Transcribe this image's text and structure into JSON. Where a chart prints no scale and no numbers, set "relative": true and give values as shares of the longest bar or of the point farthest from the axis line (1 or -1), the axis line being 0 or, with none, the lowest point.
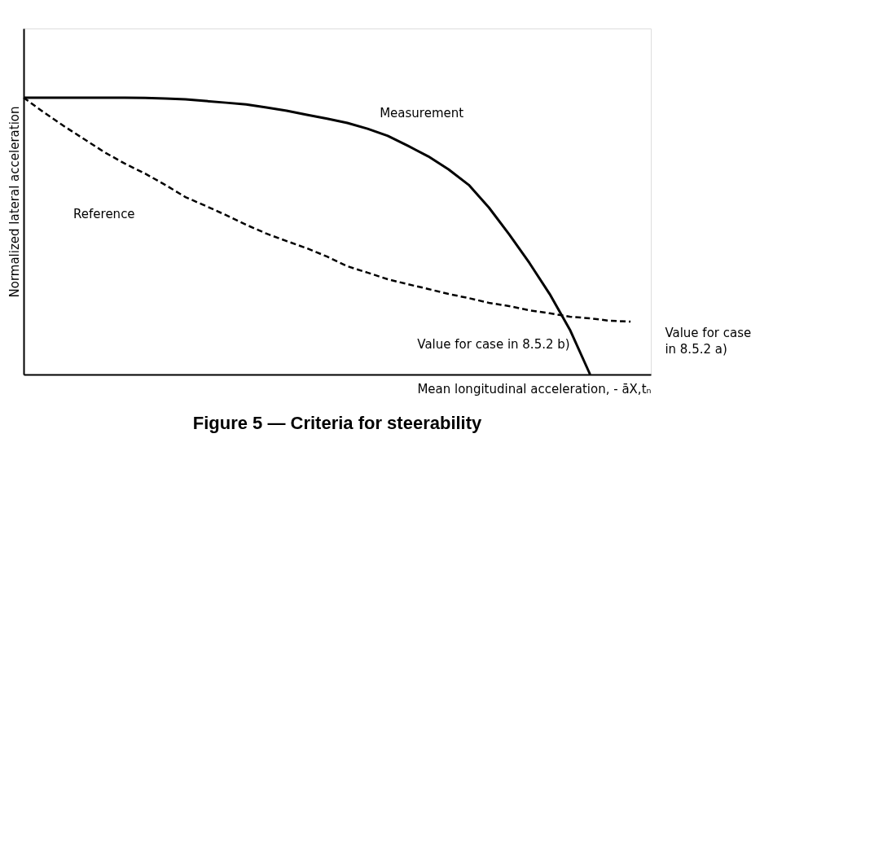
{
  "chart_data": {
    "type": "line",
    "title": "Figure 5 — Criteria for steerability",
    "xlabel": "Mean longitudinal acceleration, - āX,tₙ",
    "ylabel": "Normalized lateral acceleration",
    "relative": true,
    "legend": false,
    "grid": false,
    "tick_labels": false,
    "marker": "none",
    "categories": [
      null,
      null,
      null,
      null,
      null,
      null,
      null,
      null,
      null,
      null,
      null,
      null,
      null,
      null,
      null,
      null,
      null,
      null,
      null,
      null,
      null,
      null,
      null,
      null,
      null,
      null,
      null,
      null,
      null,
      null,
      null
    ],
    "series": [
      {
        "name": "Measurement",
        "color": "#000000",
        "line_style": "solid",
        "values": [
          1.0,
          1.0,
          1.0,
          1.0,
          1.0,
          1.0,
          0.999,
          0.997,
          0.994,
          0.988,
          0.982,
          0.976,
          0.965,
          0.953,
          0.938,
          0.924,
          0.909,
          0.888,
          0.862,
          0.826,
          0.788,
          0.741,
          0.685,
          0.603,
          0.506,
          0.403,
          0.291,
          0.162,
          0.0,
          null,
          null
        ]
      },
      {
        "name": "Reference",
        "color": "#000000",
        "line_style": "dashed",
        "values": [
          1.0,
          0.947,
          0.897,
          0.85,
          0.803,
          0.762,
          0.726,
          0.685,
          0.641,
          0.609,
          0.576,
          0.541,
          0.509,
          0.482,
          0.456,
          0.426,
          0.391,
          0.368,
          0.344,
          0.326,
          0.309,
          0.291,
          0.276,
          0.259,
          0.247,
          0.232,
          0.221,
          0.209,
          0.203,
          0.194,
          0.191
        ]
      }
    ],
    "annotations": [
      "Value for case in 8.5.2 b)",
      "Value for case in 8.5.2 a)"
    ]
  }
}
